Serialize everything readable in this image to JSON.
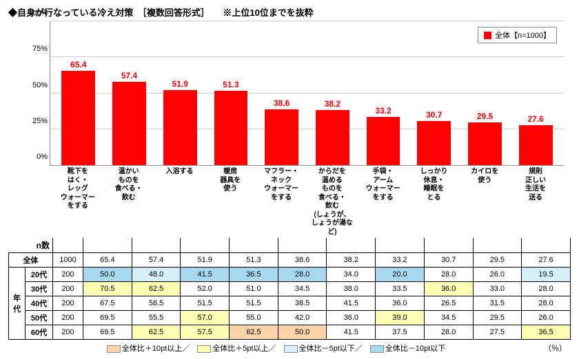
{
  "title": "◆自身が行なっている冷え対策　［複数回答形式］　　※上位10位までを抜粋",
  "chart": {
    "type": "bar",
    "legend_label": "全体【n=1000】",
    "bar_color": "#ff0000",
    "value_color": "#ff0000",
    "ylim": [
      0,
      100
    ],
    "ytick_step": 25,
    "ytick_suffix": "%",
    "grid_color": "#cccccc",
    "categories": [
      "靴下を\nはく・\nレッグ\nウォーマー\nをする",
      "温かい\nものを\n食べる・\n飲む",
      "入浴する",
      "暖房\n器具を\n使う",
      "マフラー・\nネック\nウォーマー\nをする",
      "からだを\n温める\nものを\n食べる・\n飲む\n(しょうが、\nしょうが湯など)",
      "手袋・\nアーム\nウォーマー\nをする",
      "しっかり\n休息・\n睡眠を\nとる",
      "カイロを\n使う",
      "規則\n正しい\n生活を\n送る"
    ],
    "values": [
      65.4,
      57.4,
      51.9,
      51.3,
      38.6,
      38.2,
      33.2,
      30.7,
      29.5,
      27.6
    ]
  },
  "table": {
    "n_header": "n数",
    "corner_label": "年代",
    "total_row_label": "全体",
    "total_n": "1000",
    "row_labels": [
      "20代",
      "30代",
      "40代",
      "50代",
      "60代"
    ],
    "row_n": [
      "200",
      "200",
      "200",
      "200",
      "200"
    ],
    "total_values": [
      "65.4",
      "57.4",
      "51.9",
      "51.3",
      "38.6",
      "38.2",
      "33.2",
      "30.7",
      "29.5",
      "27.6"
    ],
    "rows": [
      [
        "50.0",
        "48.0",
        "41.5",
        "36.5",
        "28.0",
        "34.0",
        "20.0",
        "28.0",
        "26.0",
        "19.5"
      ],
      [
        "70.5",
        "62.5",
        "52.0",
        "51.0",
        "34.5",
        "38.0",
        "33.5",
        "36.0",
        "33.0",
        "28.0"
      ],
      [
        "67.5",
        "58.5",
        "51.5",
        "51.5",
        "38.5",
        "41.5",
        "36.0",
        "26.5",
        "31.5",
        "28.0"
      ],
      [
        "69.5",
        "55.5",
        "57.0",
        "55.0",
        "42.0",
        "36.0",
        "39.0",
        "34.5",
        "29.5",
        "26.0"
      ],
      [
        "69.5",
        "62.5",
        "57.5",
        "62.5",
        "50.0",
        "41.5",
        "37.5",
        "28.0",
        "27.5",
        "36.5"
      ]
    ],
    "highlights": {
      "0": {
        "0": "m10",
        "1": "m5",
        "2": "m10",
        "3": "m10",
        "4": "m10",
        "6": "m10",
        "9": "m5"
      },
      "1": {
        "0": "p5",
        "1": "p5",
        "7": "p5"
      },
      "2": {},
      "3": {
        "2": "p5",
        "6": "p5"
      },
      "4": {
        "1": "p5",
        "2": "p5",
        "3": "p10",
        "4": "p10",
        "9": "p5"
      }
    },
    "highlight_colors": {
      "p10": "#fdd5a8",
      "p5": "#ffffb3",
      "m5": "#d6f0fb",
      "m10": "#a8d8f0"
    }
  },
  "footer": {
    "items": [
      {
        "swatch": "p10",
        "label": "全体比＋10pt以上／"
      },
      {
        "swatch": "p5",
        "label": "全体比＋5pt以上／"
      },
      {
        "swatch": "m5",
        "label": "全体比－5pt以下／"
      },
      {
        "swatch": "m10",
        "label": "全体比－10pt以下"
      }
    ],
    "pct": "（％）"
  }
}
